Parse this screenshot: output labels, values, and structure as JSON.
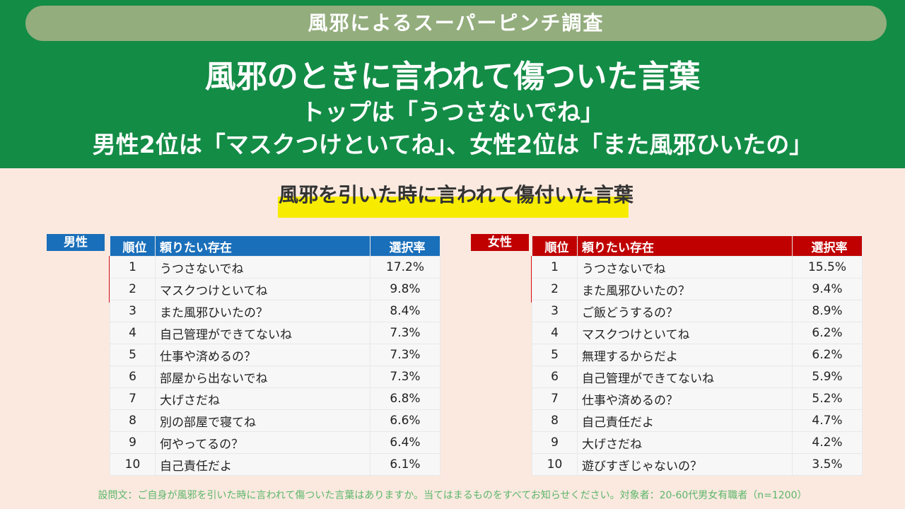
{
  "header": {
    "badge": "風邪によるスーパーピンチ調査",
    "title": "風邪のときに言われて傷ついた言葉",
    "subtitle_lines": [
      "トップは「うつさないでね」",
      "男性2位は「マスクつけといてね」、女性2位は「また風邪ひいたの」"
    ]
  },
  "section_title": "風邪を引いた時に言われて傷付いた言葉",
  "tables": [
    {
      "label": "男性",
      "columns": [
        "順位",
        "頼りたい存在",
        "選択率"
      ],
      "rows": [
        [
          "1",
          "うつさないでね",
          "17.2%"
        ],
        [
          "2",
          "マスクつけといてね",
          "9.8%"
        ],
        [
          "3",
          "また風邪ひいたの？",
          "8.4%"
        ],
        [
          "4",
          "自己管理ができてないね",
          "7.3%"
        ],
        [
          "5",
          "仕事や済めるの？",
          "7.3%"
        ],
        [
          "6",
          "部屋から出ないでね",
          "7.3%"
        ],
        [
          "7",
          "大げさだね",
          "6.8%"
        ],
        [
          "8",
          "別の部屋で寝てね",
          "6.6%"
        ],
        [
          "9",
          "何やってるの？",
          "6.4%"
        ],
        [
          "10",
          "自己責任だよ",
          "6.1%"
        ]
      ]
    },
    {
      "label": "女性",
      "columns": [
        "順位",
        "頼りたい存在",
        "選択率"
      ],
      "rows": [
        [
          "1",
          "うつさないでね",
          "15.5%"
        ],
        [
          "2",
          "また風邪ひいたの？",
          "9.4%"
        ],
        [
          "3",
          "ご飯どうするの？",
          "8.9%"
        ],
        [
          "4",
          "マスクつけといてね",
          "6.2%"
        ],
        [
          "5",
          "無理するからだよ",
          "6.2%"
        ],
        [
          "6",
          "自己管理ができてないね",
          "5.9%"
        ],
        [
          "7",
          "仕事や済めるの？",
          "5.2%"
        ],
        [
          "8",
          "自己責任だよ",
          "4.7%"
        ],
        [
          "9",
          "大げさだね",
          "4.2%"
        ],
        [
          "10",
          "遊びすぎじゃないの？",
          "3.5%"
        ]
      ]
    }
  ],
  "footnote": "設問文：ご自身が風邪を引いた時に言われて傷ついた言葉はありますか。当てはまるものをすべてお知らせください。対象者：20-60代男女有職者（n=1200）"
}
